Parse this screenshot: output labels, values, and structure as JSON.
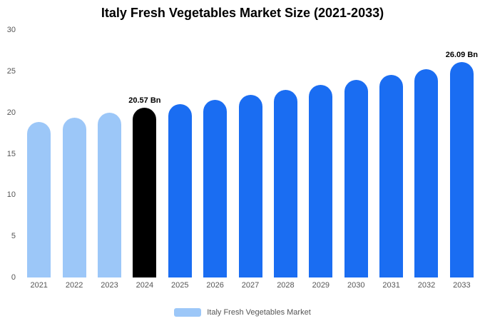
{
  "title": "Italy Fresh Vegetables Market Size (2021-2033)",
  "legend": {
    "label": "Italy Fresh Vegetables Market",
    "swatch_color": "#9cc7f8"
  },
  "colors": {
    "light_blue": "#9cc7f8",
    "primary_blue": "#1a6df2",
    "highlight_black": "#000000",
    "axis_text": "#555555"
  },
  "chart_data": {
    "type": "bar",
    "title": "Italy Fresh Vegetables Market Size (2021-2033)",
    "unit": "Bn",
    "categories": [
      "2021",
      "2022",
      "2023",
      "2024",
      "2025",
      "2026",
      "2027",
      "2028",
      "2029",
      "2030",
      "2031",
      "2032",
      "2033"
    ],
    "values": [
      18.85,
      19.4,
      19.95,
      20.57,
      21.05,
      21.55,
      22.15,
      22.75,
      23.35,
      23.95,
      24.6,
      25.25,
      26.09
    ],
    "bar_colors": [
      "#9cc7f8",
      "#9cc7f8",
      "#9cc7f8",
      "#000000",
      "#1a6df2",
      "#1a6df2",
      "#1a6df2",
      "#1a6df2",
      "#1a6df2",
      "#1a6df2",
      "#1a6df2",
      "#1a6df2",
      "#1a6df2"
    ],
    "data_labels": [
      {
        "index": 3,
        "text": "20.57 Bn"
      },
      {
        "index": 12,
        "text": "26.09 Bn"
      }
    ],
    "xlabel": "",
    "ylabel": "",
    "ylim": [
      0,
      30
    ],
    "yticks": [
      0,
      5,
      10,
      15,
      20,
      25,
      30
    ],
    "grid": false,
    "legend_position": "bottom",
    "legend_entries": [
      "Italy Fresh Vegetables Market"
    ]
  }
}
